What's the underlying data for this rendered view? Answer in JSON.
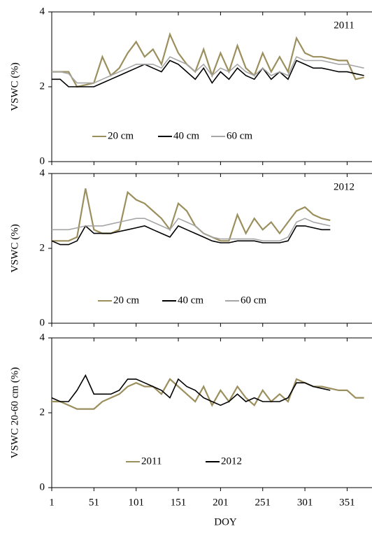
{
  "chart_data": [
    {
      "type": "line",
      "annotation": "2011",
      "y_label": "VSWC (%)",
      "xlim": [
        1,
        378
      ],
      "ylim": [
        0,
        4
      ],
      "yticks": [
        0,
        2,
        4
      ],
      "x": [
        1,
        11,
        21,
        31,
        41,
        51,
        61,
        71,
        81,
        91,
        101,
        111,
        121,
        131,
        141,
        151,
        161,
        171,
        181,
        191,
        201,
        211,
        221,
        231,
        241,
        251,
        261,
        271,
        281,
        291,
        301,
        311,
        321,
        331,
        341,
        351,
        361,
        371
      ],
      "series": [
        {
          "name": "20 cm",
          "color": "#9c8f5e",
          "values": [
            2.4,
            2.4,
            2.4,
            2.0,
            2.05,
            2.1,
            2.8,
            2.3,
            2.5,
            2.9,
            3.2,
            2.8,
            3.0,
            2.6,
            3.4,
            2.9,
            2.6,
            2.4,
            3.0,
            2.3,
            2.9,
            2.4,
            3.1,
            2.5,
            2.3,
            2.9,
            2.4,
            2.8,
            2.4,
            3.3,
            2.9,
            2.8,
            2.8,
            2.75,
            2.7,
            2.7,
            2.2,
            2.25
          ]
        },
        {
          "name": "40 cm",
          "color": "#000000",
          "values": [
            2.2,
            2.2,
            2.0,
            2.0,
            2.0,
            2.0,
            2.1,
            2.2,
            2.3,
            2.4,
            2.5,
            2.6,
            2.5,
            2.4,
            2.7,
            2.6,
            2.4,
            2.2,
            2.5,
            2.1,
            2.4,
            2.2,
            2.5,
            2.3,
            2.2,
            2.5,
            2.2,
            2.4,
            2.2,
            2.7,
            2.6,
            2.5,
            2.5,
            2.45,
            2.4,
            2.4,
            2.35,
            2.3
          ]
        },
        {
          "name": "60 cm",
          "color": "#a6a6a6",
          "values": [
            2.4,
            2.4,
            2.35,
            2.1,
            2.1,
            2.1,
            2.2,
            2.3,
            2.4,
            2.5,
            2.6,
            2.6,
            2.6,
            2.5,
            2.8,
            2.7,
            2.6,
            2.4,
            2.6,
            2.3,
            2.5,
            2.4,
            2.6,
            2.4,
            2.3,
            2.5,
            2.3,
            2.4,
            2.3,
            2.8,
            2.7,
            2.7,
            2.7,
            2.65,
            2.6,
            2.6,
            2.55,
            2.5
          ]
        }
      ]
    },
    {
      "type": "line",
      "annotation": "2012",
      "y_label": "VSWC (%)",
      "xlim": [
        1,
        378
      ],
      "ylim": [
        0,
        4
      ],
      "yticks": [
        0,
        2,
        4
      ],
      "x": [
        1,
        11,
        21,
        31,
        41,
        51,
        61,
        71,
        81,
        91,
        101,
        111,
        121,
        131,
        141,
        151,
        161,
        171,
        181,
        191,
        201,
        211,
        221,
        231,
        241,
        251,
        261,
        271,
        281,
        291,
        301,
        311,
        321,
        331
      ],
      "series": [
        {
          "name": "20 cm",
          "color": "#9c8f5e",
          "values": [
            2.2,
            2.2,
            2.2,
            2.3,
            3.6,
            2.5,
            2.4,
            2.4,
            2.5,
            3.5,
            3.3,
            3.2,
            3.0,
            2.8,
            2.5,
            3.2,
            3.0,
            2.6,
            2.4,
            2.3,
            2.2,
            2.2,
            2.9,
            2.4,
            2.8,
            2.5,
            2.7,
            2.4,
            2.7,
            3.0,
            3.1,
            2.9,
            2.8,
            2.75
          ]
        },
        {
          "name": "40 cm",
          "color": "#000000",
          "values": [
            2.2,
            2.1,
            2.1,
            2.2,
            2.6,
            2.4,
            2.4,
            2.4,
            2.45,
            2.5,
            2.55,
            2.6,
            2.5,
            2.4,
            2.3,
            2.6,
            2.5,
            2.4,
            2.3,
            2.2,
            2.15,
            2.15,
            2.2,
            2.2,
            2.2,
            2.15,
            2.15,
            2.15,
            2.2,
            2.6,
            2.6,
            2.55,
            2.5,
            2.5
          ]
        },
        {
          "name": "60 cm",
          "color": "#a6a6a6",
          "values": [
            2.5,
            2.5,
            2.5,
            2.55,
            2.6,
            2.6,
            2.6,
            2.65,
            2.7,
            2.75,
            2.8,
            2.8,
            2.7,
            2.6,
            2.5,
            2.8,
            2.7,
            2.6,
            2.4,
            2.3,
            2.25,
            2.25,
            2.25,
            2.25,
            2.25,
            2.2,
            2.2,
            2.2,
            2.3,
            2.7,
            2.8,
            2.7,
            2.65,
            2.6
          ]
        }
      ]
    },
    {
      "type": "line",
      "y_label": "VSWC 20-60 cm (%)",
      "x_label": "DOY",
      "xlim": [
        1,
        378
      ],
      "ylim": [
        0,
        4
      ],
      "yticks": [
        0,
        2,
        4
      ],
      "xticks": [
        1,
        51,
        101,
        151,
        201,
        251,
        301,
        351
      ],
      "x": [
        1,
        11,
        21,
        31,
        41,
        51,
        61,
        71,
        81,
        91,
        101,
        111,
        121,
        131,
        141,
        151,
        161,
        171,
        181,
        191,
        201,
        211,
        221,
        231,
        241,
        251,
        261,
        271,
        281,
        291,
        301,
        311,
        321,
        331,
        341,
        351,
        361,
        371
      ],
      "series": [
        {
          "name": "2011",
          "color": "#9c8f5e",
          "values": [
            2.3,
            2.3,
            2.2,
            2.1,
            2.1,
            2.1,
            2.3,
            2.4,
            2.5,
            2.7,
            2.8,
            2.7,
            2.7,
            2.5,
            2.9,
            2.7,
            2.5,
            2.3,
            2.7,
            2.2,
            2.6,
            2.3,
            2.7,
            2.4,
            2.2,
            2.6,
            2.3,
            2.5,
            2.3,
            2.9,
            2.8,
            2.7,
            2.7,
            2.65,
            2.6,
            2.6,
            2.4,
            2.4
          ]
        },
        {
          "name": "2012",
          "color": "#000000",
          "values": [
            2.4,
            2.3,
            2.3,
            2.6,
            3.0,
            2.5,
            2.5,
            2.5,
            2.6,
            2.9,
            2.9,
            2.8,
            2.7,
            2.6,
            2.4,
            2.9,
            2.7,
            2.6,
            2.4,
            2.3,
            2.2,
            2.3,
            2.5,
            2.3,
            2.4,
            2.3,
            2.3,
            2.3,
            2.4,
            2.8,
            2.8,
            2.7,
            2.65,
            2.6,
            null,
            null,
            null,
            null
          ]
        }
      ]
    }
  ]
}
